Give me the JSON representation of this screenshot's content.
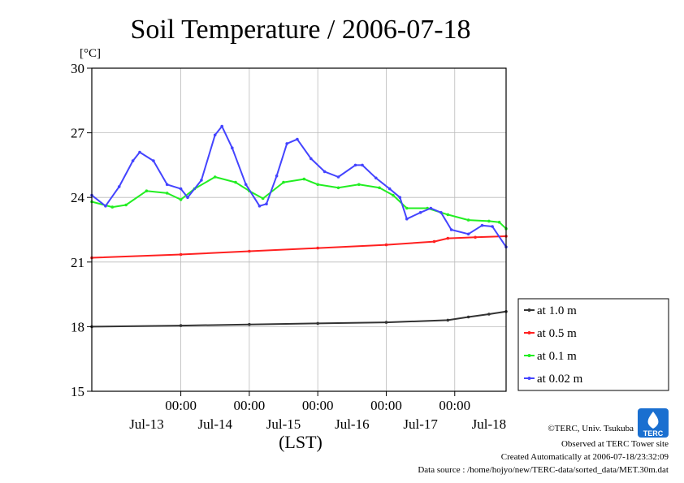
{
  "chart_data": {
    "type": "line",
    "title": "Soil Temperature / 2006-07-18",
    "unit_label": "[°C]",
    "xlabel": "(LST)",
    "ylim": [
      15,
      30
    ],
    "yticks": [
      "15",
      "18",
      "21",
      "24",
      "27",
      "30"
    ],
    "x_range_days": [
      -0.3,
      5.75
    ],
    "x_time_ticks": [
      {
        "day": 1,
        "label": "00:00"
      },
      {
        "day": 2,
        "label": "00:00"
      },
      {
        "day": 3,
        "label": "00:00"
      },
      {
        "day": 4,
        "label": "00:00"
      },
      {
        "day": 5,
        "label": "00:00"
      }
    ],
    "x_date_labels": [
      {
        "day": 0.5,
        "label": "Jul-13"
      },
      {
        "day": 1.5,
        "label": "Jul-14"
      },
      {
        "day": 2.5,
        "label": "Jul-15"
      },
      {
        "day": 3.5,
        "label": "Jul-16"
      },
      {
        "day": 4.5,
        "label": "Jul-17"
      },
      {
        "day": 5.5,
        "label": "Jul-18"
      }
    ],
    "grid": true,
    "legend_position": "right",
    "series": [
      {
        "name": "at 1.0 m",
        "color": "#333333",
        "points": [
          [
            -0.3,
            18.0
          ],
          [
            1.0,
            18.05
          ],
          [
            2.0,
            18.1
          ],
          [
            3.0,
            18.15
          ],
          [
            4.0,
            18.2
          ],
          [
            4.9,
            18.3
          ],
          [
            5.2,
            18.45
          ],
          [
            5.5,
            18.58
          ],
          [
            5.75,
            18.7
          ]
        ]
      },
      {
        "name": "at 0.5 m",
        "color": "#ff2020",
        "points": [
          [
            -0.3,
            21.2
          ],
          [
            1.0,
            21.35
          ],
          [
            2.0,
            21.5
          ],
          [
            3.0,
            21.65
          ],
          [
            4.0,
            21.8
          ],
          [
            4.7,
            21.95
          ],
          [
            4.9,
            22.1
          ],
          [
            5.3,
            22.15
          ],
          [
            5.75,
            22.2
          ]
        ]
      },
      {
        "name": "at 0.1 m",
        "color": "#22ee22",
        "points": [
          [
            -0.3,
            23.8
          ],
          [
            0.0,
            23.55
          ],
          [
            0.2,
            23.65
          ],
          [
            0.5,
            24.3
          ],
          [
            0.8,
            24.2
          ],
          [
            1.0,
            23.9
          ],
          [
            1.2,
            24.4
          ],
          [
            1.5,
            24.95
          ],
          [
            1.8,
            24.7
          ],
          [
            2.0,
            24.3
          ],
          [
            2.2,
            23.95
          ],
          [
            2.5,
            24.7
          ],
          [
            2.8,
            24.85
          ],
          [
            3.0,
            24.6
          ],
          [
            3.3,
            24.45
          ],
          [
            3.6,
            24.6
          ],
          [
            3.9,
            24.45
          ],
          [
            4.1,
            24.1
          ],
          [
            4.3,
            23.5
          ],
          [
            4.6,
            23.5
          ],
          [
            4.9,
            23.2
          ],
          [
            5.2,
            22.95
          ],
          [
            5.5,
            22.9
          ],
          [
            5.65,
            22.85
          ],
          [
            5.75,
            22.55
          ]
        ]
      },
      {
        "name": "at 0.02 m",
        "color": "#4444ff",
        "points": [
          [
            -0.3,
            24.1
          ],
          [
            -0.1,
            23.6
          ],
          [
            0.1,
            24.5
          ],
          [
            0.3,
            25.7
          ],
          [
            0.4,
            26.1
          ],
          [
            0.6,
            25.7
          ],
          [
            0.8,
            24.6
          ],
          [
            1.0,
            24.4
          ],
          [
            1.1,
            24.0
          ],
          [
            1.3,
            24.8
          ],
          [
            1.5,
            26.9
          ],
          [
            1.6,
            27.3
          ],
          [
            1.75,
            26.3
          ],
          [
            1.95,
            24.6
          ],
          [
            2.15,
            23.6
          ],
          [
            2.25,
            23.7
          ],
          [
            2.4,
            25.0
          ],
          [
            2.55,
            26.5
          ],
          [
            2.7,
            26.7
          ],
          [
            2.9,
            25.8
          ],
          [
            3.1,
            25.2
          ],
          [
            3.3,
            24.95
          ],
          [
            3.55,
            25.5
          ],
          [
            3.65,
            25.5
          ],
          [
            3.85,
            24.9
          ],
          [
            4.05,
            24.4
          ],
          [
            4.2,
            24.0
          ],
          [
            4.3,
            23.0
          ],
          [
            4.5,
            23.3
          ],
          [
            4.65,
            23.5
          ],
          [
            4.8,
            23.3
          ],
          [
            4.95,
            22.5
          ],
          [
            5.2,
            22.3
          ],
          [
            5.4,
            22.7
          ],
          [
            5.55,
            22.65
          ],
          [
            5.75,
            21.7
          ]
        ]
      }
    ]
  },
  "footer": {
    "copyright": "©TERC, Univ. Tsukuba",
    "observed": "Observed at TERC Tower site",
    "created": "Created Automatically at 2006-07-18/23:32:09",
    "source": "Data source : /home/hojyo/new/TERC-data/sorted_data/MET.30m.dat",
    "logo_text": "TERC"
  },
  "colors": {
    "grid": "#bbbbbb",
    "axis": "#000000",
    "logo": "#1a6fd0"
  }
}
